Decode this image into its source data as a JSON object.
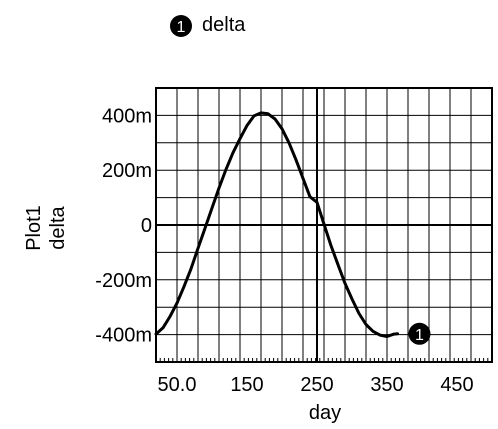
{
  "chart_data": {
    "type": "line",
    "title": "",
    "xlabel": "day",
    "ylabel_lines": [
      "Plot1",
      "delta"
    ],
    "xlim": [
      20,
      500
    ],
    "ylim": [
      -0.5,
      0.5
    ],
    "x_ticks": [
      50,
      150,
      250,
      350,
      450
    ],
    "x_tick_labels": [
      "50.0",
      "150",
      "250",
      "350",
      "450"
    ],
    "y_ticks": [
      -0.4,
      -0.2,
      0,
      0.2,
      0.4
    ],
    "y_tick_labels": [
      "-400m",
      "-200m",
      "0",
      "200m",
      "400m"
    ],
    "x_gridlines": [
      20,
      50,
      80,
      110,
      140,
      170,
      200,
      230,
      260,
      290,
      320,
      350,
      380,
      410,
      440,
      470,
      500
    ],
    "y_gridlines": [
      -0.4,
      -0.3,
      -0.2,
      -0.1,
      0,
      0.1,
      0.2,
      0.3,
      0.4
    ],
    "grid": true,
    "crosshair_x": 250,
    "crosshair_y": 0,
    "series": [
      {
        "name": "delta",
        "marker_label": "1",
        "color": "#000000",
        "x": [
          20,
          30,
          40,
          50,
          60,
          70,
          80,
          90,
          100,
          110,
          120,
          130,
          140,
          150,
          160,
          170,
          180,
          190,
          200,
          210,
          220,
          230,
          240,
          250,
          260,
          270,
          280,
          290,
          300,
          310,
          320,
          330,
          340,
          350,
          360,
          365
        ],
        "values": [
          -0.398,
          -0.375,
          -0.334,
          -0.285,
          -0.225,
          -0.16,
          -0.085,
          -0.012,
          0.062,
          0.135,
          0.203,
          0.264,
          0.315,
          0.363,
          0.398,
          0.409,
          0.406,
          0.387,
          0.351,
          0.3,
          0.238,
          0.17,
          0.103,
          0.083,
          0.003,
          -0.075,
          -0.145,
          -0.213,
          -0.27,
          -0.323,
          -0.363,
          -0.388,
          -0.402,
          -0.407,
          -0.398,
          -0.397
        ]
      }
    ],
    "legend": {
      "position": "top-center",
      "entries": [
        {
          "marker": "1",
          "label": "delta"
        }
      ]
    }
  }
}
